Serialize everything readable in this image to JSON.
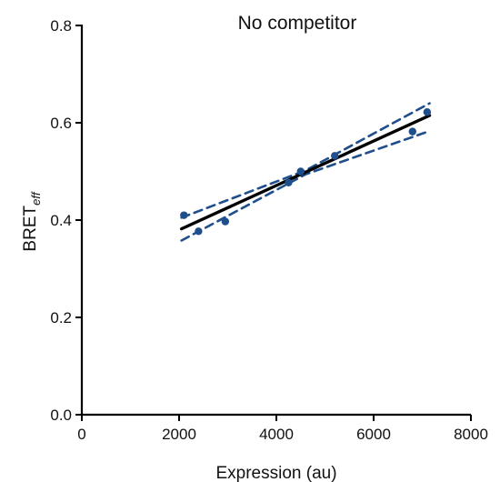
{
  "chart_data": {
    "type": "scatter",
    "title": "No competitor",
    "xlabel": "Expression (au)",
    "ylabel": {
      "main": "BRET",
      "subscript": "eff"
    },
    "xlim": [
      0,
      8000
    ],
    "ylim": [
      0,
      0.8
    ],
    "x_ticks": [
      0,
      2000,
      4000,
      6000,
      8000
    ],
    "x_tick_labels": [
      "0",
      "2000",
      "4000",
      "6000",
      "8000"
    ],
    "y_ticks": [
      0,
      0.2,
      0.4,
      0.6,
      0.8
    ],
    "y_tick_labels": [
      "0.0",
      "0.2",
      "0.4",
      "0.6",
      "0.8"
    ],
    "grid": false,
    "series": [
      {
        "kind": "points",
        "color": "#1f4e8c",
        "x": [
          2100,
          2400,
          2950,
          4250,
          4500,
          5200,
          6800,
          7100
        ],
        "y": [
          0.41,
          0.377,
          0.397,
          0.477,
          0.5,
          0.532,
          0.582,
          0.622
        ]
      }
    ],
    "fit": {
      "color": "#000000",
      "x": [
        2050,
        7150
      ],
      "y": [
        0.382,
        0.615
      ]
    },
    "confidence_band": {
      "color": "#1f4e8c",
      "upper": {
        "x": [
          2050,
          4600,
          7150
        ],
        "y": [
          0.405,
          0.502,
          0.64
        ]
      },
      "lower": {
        "x": [
          2050,
          4600,
          7150
        ],
        "y": [
          0.358,
          0.494,
          0.583
        ]
      }
    }
  }
}
